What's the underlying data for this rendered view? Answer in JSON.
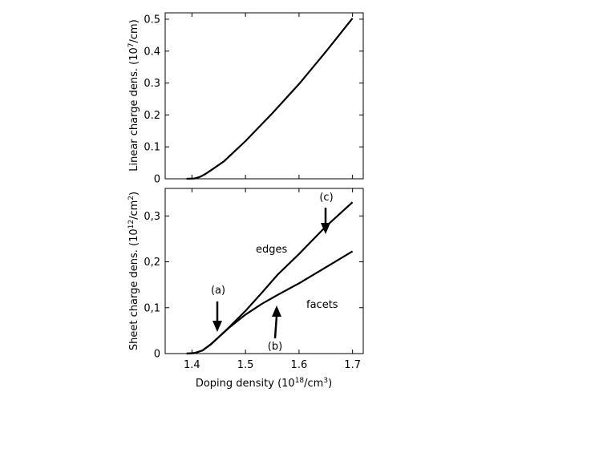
{
  "chart_data": [
    {
      "type": "line",
      "ylabel": "Linear charge dens. (10",
      "ylabel_exp": "7",
      "ylabel_end": "/cm)",
      "xlim": [
        1.35,
        1.72
      ],
      "ylim": [
        0,
        0.52
      ],
      "yticks": [
        "0",
        "0.1",
        "0.2",
        "0.3",
        "0.4",
        "0.5"
      ],
      "ytick_values": [
        0,
        0.1,
        0.2,
        0.3,
        0.4,
        0.5
      ],
      "series": [
        {
          "x": [
            1.39,
            1.405,
            1.415,
            1.425,
            1.44,
            1.46,
            1.5,
            1.55,
            1.6,
            1.65,
            1.7
          ],
          "y": [
            0,
            0.001,
            0.006,
            0.015,
            0.032,
            0.055,
            0.118,
            0.205,
            0.297,
            0.398,
            0.503
          ]
        }
      ]
    },
    {
      "type": "line",
      "xlabel": "Doping density (10",
      "xlabel_exp": "18",
      "xlabel_mid": "/cm",
      "xlabel_exp2": "3",
      "xlabel_end": ")",
      "ylabel": "Sheet charge dens. (10",
      "ylabel_exp": "12",
      "ylabel_mid": "/cm",
      "ylabel_exp2": "2",
      "ylabel_end": ")",
      "xlim": [
        1.35,
        1.72
      ],
      "ylim": [
        0,
        0.36
      ],
      "xticks": [
        "1.4",
        "1.5",
        "1.6",
        "1.7"
      ],
      "xtick_values": [
        1.4,
        1.5,
        1.6,
        1.7
      ],
      "yticks": [
        "0",
        "0,1",
        "0,2",
        "0,3"
      ],
      "ytick_values": [
        0,
        0.1,
        0.2,
        0.3
      ],
      "series": [
        {
          "name": "edges",
          "x": [
            1.39,
            1.405,
            1.42,
            1.435,
            1.45,
            1.47,
            1.5,
            1.53,
            1.56,
            1.6,
            1.65,
            1.7
          ],
          "y": [
            0,
            0.001,
            0.007,
            0.02,
            0.036,
            0.058,
            0.093,
            0.132,
            0.172,
            0.217,
            0.277,
            0.33
          ]
        },
        {
          "name": "facets",
          "x": [
            1.39,
            1.405,
            1.42,
            1.435,
            1.45,
            1.47,
            1.5,
            1.53,
            1.56,
            1.6,
            1.65,
            1.7
          ],
          "y": [
            0,
            0.001,
            0.007,
            0.02,
            0.036,
            0.057,
            0.085,
            0.108,
            0.128,
            0.153,
            0.188,
            0.223
          ]
        }
      ],
      "annotations": [
        {
          "text": "(a)",
          "x": 1.451,
          "y": 0.035
        },
        {
          "text": "(b)",
          "x": 1.555,
          "y": 0.118
        },
        {
          "text": "(c)",
          "x": 1.653,
          "y": 0.268
        }
      ],
      "labels": [
        {
          "text": "edges"
        },
        {
          "text": "facets"
        }
      ]
    }
  ]
}
